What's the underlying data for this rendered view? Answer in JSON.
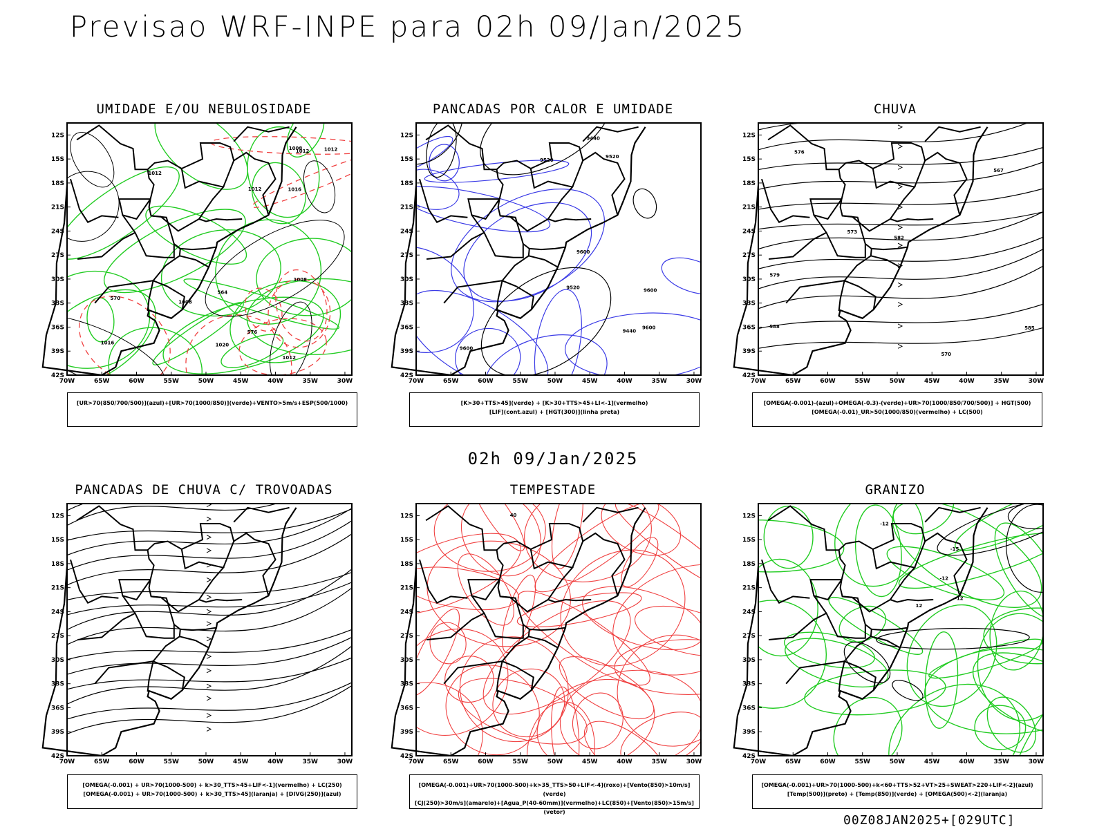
{
  "header": {
    "title": "Previsao WRF-INPE  para 02h 09/Jan/2025"
  },
  "middle_title": "02h 09/Jan/2025",
  "footer": "00Z08JAN2025+[029UTC]",
  "axes": {
    "lat_labels": [
      "12S",
      "15S",
      "18S",
      "21S",
      "24S",
      "27S",
      "30S",
      "33S",
      "36S",
      "39S",
      "42S"
    ],
    "lon_labels": [
      "70W",
      "65W",
      "60W",
      "55W",
      "50W",
      "45W",
      "40W",
      "35W",
      "30W"
    ]
  },
  "panels": [
    {
      "id": "umidade",
      "title": "UMIDADE E/OU NEBULOSIDADE",
      "legend": [
        "[UR>70(850/700/500)](azul)+[UR>70(1000/850)](verde)+VENTO>5m/s+ESP(500/1000)"
      ],
      "labels": [
        "1012",
        "1012",
        "1012",
        "1008",
        "1016",
        "1020",
        "1008",
        "1012",
        "576",
        "570",
        "564",
        "1012",
        "1016",
        "1008"
      ]
    },
    {
      "id": "pancadas-calor",
      "title": "PANCADAS POR CALOR E UMIDADE",
      "legend": [
        "[K>30+TTS>45](verde) + [K>30+TTS>45+LI<-1](vermelho)",
        "[LIF](cont.azul) + [HGT(300)](linha preta)"
      ],
      "labels": [
        "9600",
        "9600",
        "9600",
        "9520",
        "9520",
        "9440",
        "9600",
        "9520",
        "9440"
      ]
    },
    {
      "id": "chuva",
      "title": "CHUVA",
      "legend": [
        "[OMEGA(-0.001)-(azul)+OMEGA(-0.3)-(verde)+UR>70(1000/850/700/500)] + HGT(500)",
        "[OMEGA(-0.01)_UR>50(1000/850)(vermelho) + LC(500)"
      ],
      "labels": [
        "582",
        "579",
        "576",
        "573",
        "570",
        "567",
        "588",
        "585"
      ]
    },
    {
      "id": "pancadas-trovoadas",
      "title": "PANCADAS DE CHUVA C/ TROVOADAS",
      "legend": [
        "[OMEGA(-0.001) + UR>70(1000-500) + k>30_TTS>45+LIF<-1](vermelho) + LC(250)",
        "[OMEGA(-0.001) + UR>70(1000-500) + k>30_TTS>45](laranja) + [DIVG(250)](azul)"
      ],
      "labels": []
    },
    {
      "id": "tempestade",
      "title": "TEMPESTADE",
      "legend": [
        "[OMEGA(-0.001)+UR>70(1000-500)+k>35_TTS>50+LIF<-4](roxo)+[Vento(850)>10m/s](verde)",
        "[CJ(250)>30m/s](amarelo)+[Agua_P(40-60mm)](vermelho)+LC(850)+[Vento(850)>15m/s](vetor)"
      ],
      "labels": [
        "40"
      ]
    },
    {
      "id": "granizo",
      "title": "GRANIZO",
      "legend": [
        "[OMEGA(-0.001)+UR>70(1000-500)+k<60+TTS>52+VT>25+SWEAT>220+LIF<-2](azul)",
        "[Temp(500)](preto) + [Temp(850)](verde) + [OMEGA(500)<-2](laranja)"
      ],
      "labels": [
        "-12",
        "-12",
        "-12",
        "-15",
        "12"
      ]
    }
  ],
  "colors": {
    "blue": "#3a3ae6",
    "lightblue": "#a8a8f0",
    "green": "#22cc22",
    "red": "#f04040",
    "darkgreen": "#1e4a44",
    "orange": "#f08a20",
    "yellow": "#e8e020"
  }
}
